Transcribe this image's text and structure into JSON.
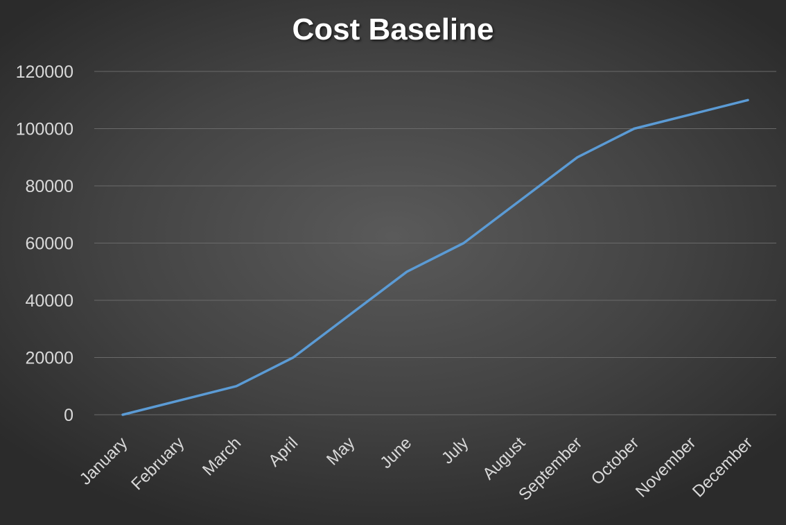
{
  "chart_data": {
    "type": "line",
    "title": "Cost Baseline",
    "xlabel": "",
    "ylabel": "",
    "categories": [
      "January",
      "February",
      "March",
      "April",
      "May",
      "June",
      "July",
      "August",
      "September",
      "October",
      "November",
      "December"
    ],
    "series": [
      {
        "values": [
          0,
          5000,
          10000,
          20000,
          35000,
          50000,
          60000,
          75000,
          90000,
          100000,
          105000,
          110000
        ]
      }
    ],
    "ylim": [
      0,
      120000
    ],
    "yticks": [
      "0",
      "20000",
      "40000",
      "60000",
      "80000",
      "100000",
      "120000"
    ],
    "grid": true,
    "legend": "none",
    "colors": {
      "line": "#5b9bd5",
      "text": "#d9d9d9",
      "title": "#ffffff"
    }
  }
}
